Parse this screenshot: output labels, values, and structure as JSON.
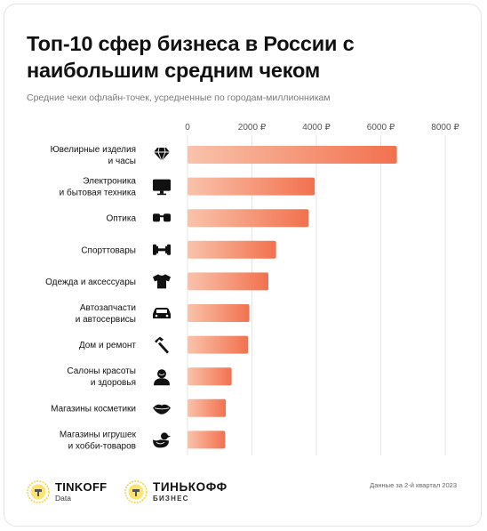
{
  "header": {
    "title": "Топ-10 сфер бизнеса в России с наибольшим средним чеком",
    "subtitle": "Средние чеки офлайн-точек, усредненные по городам-миллионникам"
  },
  "chart_data": {
    "type": "bar",
    "orientation": "horizontal",
    "title": "Топ-10 сфер бизнеса в России с наибольшим средним чеком",
    "subtitle": "Средние чеки офлайн-точек, усредненные по городам-миллионникам",
    "xlim": [
      0,
      8000
    ],
    "ticks": [
      0,
      2000,
      4000,
      6000,
      8000
    ],
    "tick_labels": [
      "0",
      "2000 ₽",
      "4000 ₽",
      "6000 ₽",
      "8000 ₽"
    ],
    "grid": "vertical",
    "legend": "none",
    "categories": [
      [
        "Ювелирные изделия",
        "и часы"
      ],
      [
        "Электроника",
        "и бытовая техника"
      ],
      [
        "Оптика"
      ],
      [
        "Спорттовары"
      ],
      [
        "Одежда и аксессуары"
      ],
      [
        "Автозапчасти",
        "и  автосервисы"
      ],
      [
        "Дом и ремонт"
      ],
      [
        "Салоны красоты",
        "и здоровья"
      ],
      [
        "Магазины косметики"
      ],
      [
        "Магазины игрушек",
        "и хобби-товаров"
      ]
    ],
    "icons": [
      "diamond-icon",
      "monitor-icon",
      "glasses-icon",
      "dumbbell-icon",
      "tshirt-icon",
      "car-icon",
      "hammer-icon",
      "person-icon",
      "lips-icon",
      "duck-icon"
    ],
    "values": [
      6500,
      3950,
      3760,
      2750,
      2510,
      1920,
      1880,
      1370,
      1190,
      1170
    ],
    "bar_gradient": [
      "#f9c3ab",
      "#f2714e"
    ]
  },
  "footer": {
    "note": "Данные за 2-й квартал 2023",
    "logo1_main": "TINKOFF",
    "logo1_sub": "Data",
    "logo2_main": "ТИНЬКОФФ",
    "logo2_sub": "БИЗНЕС"
  }
}
